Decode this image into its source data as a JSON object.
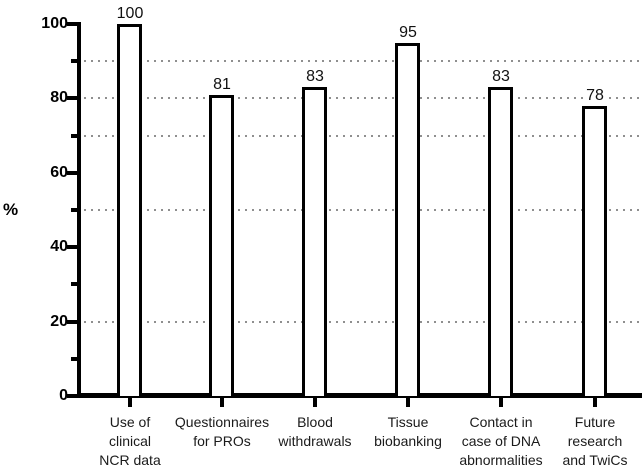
{
  "chart_data": {
    "type": "bar",
    "title": "",
    "xlabel": "",
    "ylabel": "%",
    "categories": [
      "Use of clinical NCR data",
      "Questionnaires for PROs",
      "Blood withdrawals",
      "Tissue biobanking",
      "Contact in case of DNA abnormalities",
      "Future research and TwiCs"
    ],
    "category_lines": [
      [
        "Use of",
        "clinical",
        "NCR data"
      ],
      [
        "Questionnaires",
        "for PROs"
      ],
      [
        "Blood",
        "withdrawals"
      ],
      [
        "Tissue",
        "biobanking"
      ],
      [
        "Contact in",
        "case of DNA",
        "abnormalities"
      ],
      [
        "Future",
        "research",
        "and TwiCs"
      ]
    ],
    "values": [
      100,
      81,
      83,
      95,
      83,
      78
    ],
    "bar_value_labels": [
      "100",
      "81",
      "83",
      "95",
      "83",
      "78"
    ],
    "ylim": [
      0,
      100
    ],
    "y_major_ticks": [
      0,
      20,
      40,
      60,
      80,
      100
    ],
    "y_major_tick_labels": [
      "0",
      "20",
      "40",
      "60",
      "80",
      "100"
    ],
    "y_minor_ticks": [
      10,
      30,
      50,
      70,
      90
    ],
    "dotted_gridlines_at": [
      90,
      80,
      70,
      50,
      20
    ],
    "grid_style": "dotted",
    "legend": "none",
    "colors": {
      "bar_fill": "#ffffff",
      "bar_border": "#000000",
      "axis": "#000000",
      "grid_dots": "#8f8f8f",
      "text": "#1a1a1a"
    }
  }
}
